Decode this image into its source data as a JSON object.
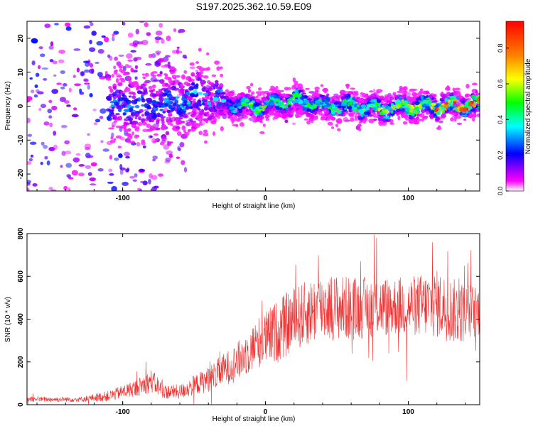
{
  "title": "S197.2025.362.10.59.E09",
  "chart_data": [
    {
      "type": "heatmap",
      "xlabel": "Height of straight line (km)",
      "ylabel": "Frequency (Hz)",
      "xlim": [
        -167,
        150
      ],
      "ylim": [
        -25,
        25
      ],
      "xticks": [
        -100,
        0,
        100
      ],
      "xtick_labels": [
        "-100",
        "0",
        "100"
      ],
      "yticks": [
        -20,
        -10,
        0,
        10,
        20
      ],
      "ytick_labels": [
        "-20",
        "-10",
        "0",
        "10",
        "20"
      ],
      "colorbar": {
        "label": "Normalized spectral amplitude",
        "range": [
          0,
          0.95
        ],
        "ticks": [
          0.0,
          0.2,
          0.4,
          0.6,
          0.8
        ],
        "tick_labels": [
          "0.0",
          "0.2",
          "0.4",
          "0.6",
          "0.8"
        ],
        "colors": [
          "#ffffff",
          "#ff00ff",
          "#8000ff",
          "#0000ff",
          "#00ffff",
          "#00ff00",
          "#ffff00",
          "#ff8000",
          "#ff0000"
        ]
      },
      "ridge": {
        "x": [
          -100,
          -80,
          -60,
          -45,
          -30,
          -10,
          0,
          20,
          40,
          60,
          80,
          100,
          120,
          150
        ],
        "freq": [
          0,
          0,
          1,
          3,
          1,
          0,
          0,
          2,
          0,
          0,
          -1,
          0,
          0,
          0.5
        ],
        "peak_amplitude": [
          0.3,
          0.3,
          0.35,
          0.4,
          0.35,
          0.6,
          0.5,
          0.55,
          0.5,
          0.55,
          0.6,
          0.7,
          0.85,
          0.9
        ]
      }
    },
    {
      "type": "line",
      "xlabel": "Height of straight line (km)",
      "ylabel": "SNR (10 * v/v)",
      "xlim": [
        -167,
        150
      ],
      "ylim": [
        0,
        800
      ],
      "xticks": [
        -100,
        0,
        100
      ],
      "xtick_labels": [
        "-100",
        "0",
        "100"
      ],
      "yticks": [
        0,
        200,
        400,
        600,
        800
      ],
      "ytick_labels": [
        "0",
        "200",
        "400",
        "600",
        "800"
      ],
      "color": "#ee3333",
      "envelope": {
        "x": [
          -167,
          -130,
          -110,
          -90,
          -80,
          -70,
          -60,
          -40,
          -20,
          -5,
          10,
          20,
          40,
          60,
          80,
          100,
          120,
          135,
          150
        ],
        "mean": [
          25,
          25,
          40,
          80,
          110,
          60,
          60,
          120,
          200,
          290,
          350,
          400,
          460,
          450,
          460,
          460,
          470,
          430,
          440
        ],
        "spread": [
          12,
          12,
          25,
          40,
          55,
          35,
          35,
          60,
          90,
          120,
          150,
          150,
          160,
          150,
          140,
          140,
          160,
          150,
          120
        ]
      }
    }
  ]
}
